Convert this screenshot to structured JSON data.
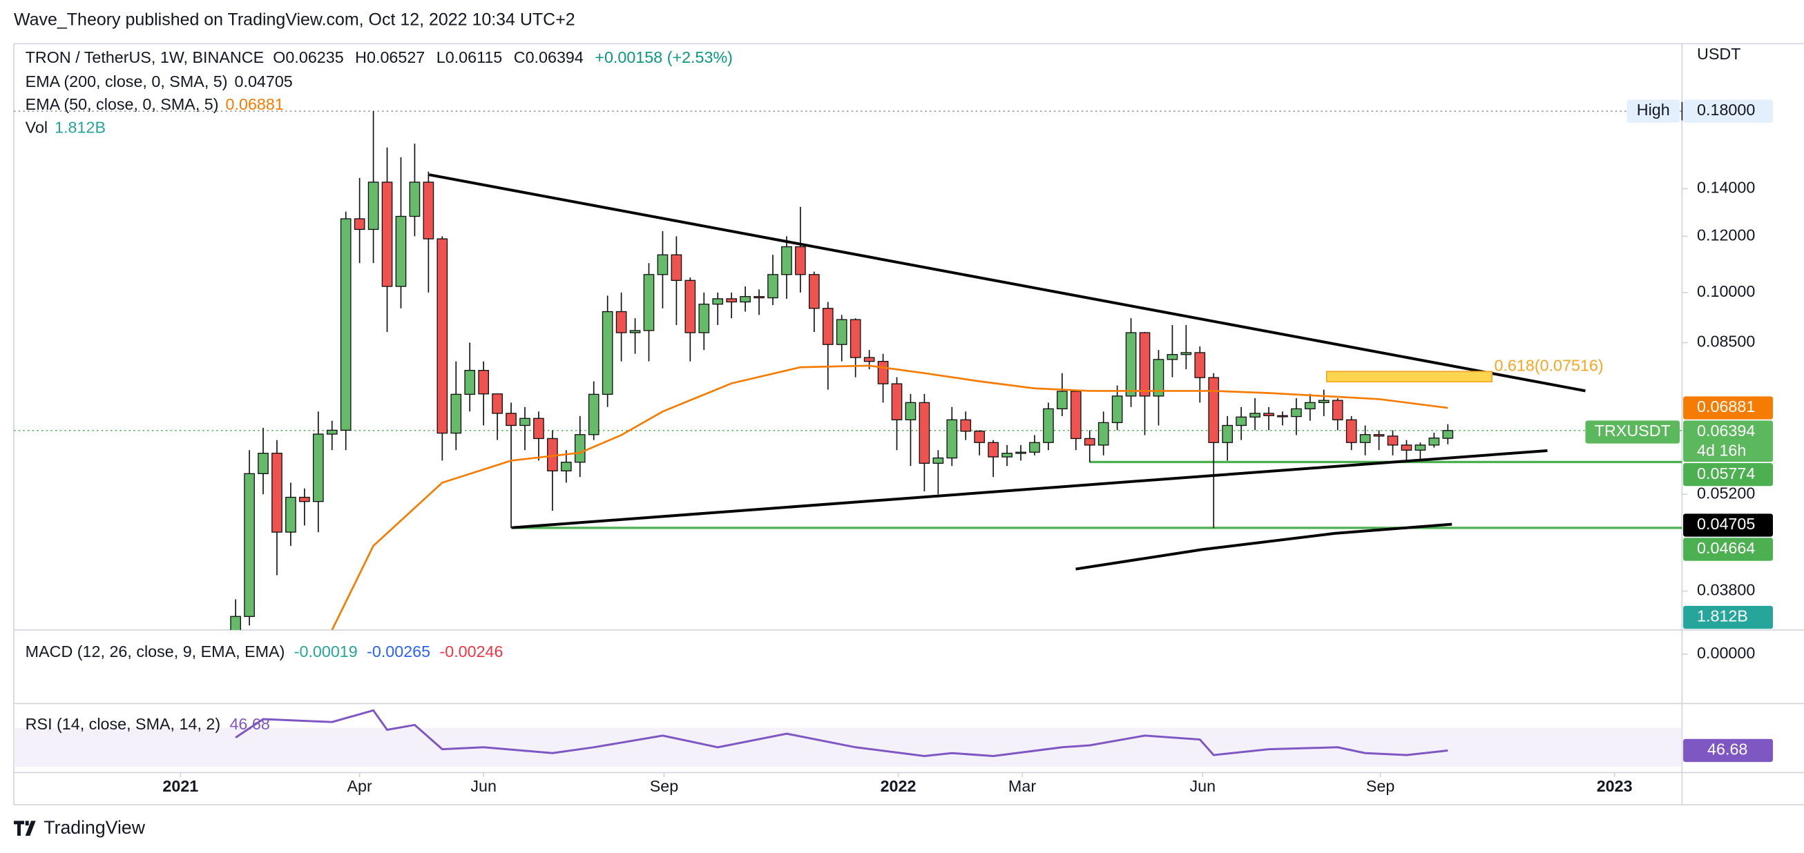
{
  "header": {
    "publisher": "Wave_Theory published on TradingView.com, Oct 12, 2022 10:34 UTC+2"
  },
  "chart_data": {
    "type": "candlestick",
    "title": "TRON / TetherUS, 1W, BINANCE",
    "ohlc_labels": [
      "O0.06235",
      "H0.06527",
      "L0.06115",
      "C0.06394",
      "+0.00158 (+2.53%)"
    ],
    "legend": [
      {
        "name": "EMA (200, close, 0, SMA, 5)",
        "value": "0.04705",
        "color": "#131722"
      },
      {
        "name": "EMA (50, close, 0, SMA, 5)",
        "value": "0.06881",
        "color": "#f57c00"
      },
      {
        "name": "Vol",
        "value": "1.812B",
        "color": "#26a69a"
      }
    ],
    "y_unit": "USDT",
    "log_scale": true,
    "grid": false,
    "up_color": "#66bb6a",
    "down_color": "#ef5350",
    "border_color": "#111111",
    "x": [
      0,
      1,
      2,
      3,
      4,
      5,
      6,
      7,
      8,
      9,
      10,
      11,
      12,
      13,
      14,
      15,
      16,
      17,
      18,
      19,
      20,
      21,
      22,
      23,
      24,
      25,
      26,
      27,
      28,
      29,
      30,
      31,
      32,
      33,
      34,
      35,
      36,
      37,
      38,
      39,
      40,
      41,
      42,
      43,
      44,
      45,
      46,
      47,
      48,
      49,
      50,
      51,
      52,
      53,
      54,
      55,
      56,
      57,
      58,
      59,
      60,
      61,
      62,
      63,
      64,
      65,
      66,
      67,
      68,
      69,
      70,
      71,
      72,
      73,
      74,
      75,
      76,
      77,
      78,
      79,
      80,
      81,
      82,
      83,
      84,
      85,
      86,
      87,
      88
    ],
    "open": [
      0.033,
      0.035,
      0.0556,
      0.0594,
      0.046,
      0.0515,
      0.0508,
      0.0632,
      0.064,
      0.127,
      0.1227,
      0.143,
      0.102,
      0.128,
      0.143,
      0.119,
      0.0634,
      0.0719,
      0.0777,
      0.072,
      0.0676,
      0.065,
      0.0665,
      0.0623,
      0.0561,
      0.0577,
      0.0631,
      0.0719,
      0.094,
      0.0878,
      0.0884,
      0.106,
      0.113,
      0.104,
      0.0878,
      0.0963,
      0.098,
      0.097,
      0.0987,
      0.0983,
      0.106,
      0.116,
      0.106,
      0.095,
      0.0845,
      0.0916,
      0.081,
      0.08,
      0.0744,
      0.0662,
      0.07,
      0.0575,
      0.0585,
      0.0662,
      0.0638,
      0.0615,
      0.0587,
      0.0594,
      0.0596,
      0.0615,
      0.0686,
      0.0726,
      0.0623,
      0.061,
      0.0656,
      0.0715,
      0.0878,
      0.0715,
      0.0805,
      0.0818,
      0.0823,
      0.0759,
      0.0615,
      0.065,
      0.0668,
      0.0676,
      0.0671,
      0.0669,
      0.0686,
      0.07,
      0.0705,
      0.0662,
      0.0615,
      0.0631,
      0.0628,
      0.061,
      0.06,
      0.061,
      0.06235
    ],
    "high": [
      0.037,
      0.06,
      0.0645,
      0.062,
      0.054,
      0.053,
      0.068,
      0.066,
      0.13,
      0.145,
      0.18,
      0.16,
      0.155,
      0.162,
      0.148,
      0.12,
      0.08,
      0.085,
      0.08,
      0.072,
      0.07,
      0.069,
      0.068,
      0.064,
      0.06,
      0.067,
      0.075,
      0.099,
      0.1,
      0.092,
      0.11,
      0.122,
      0.12,
      0.105,
      0.1,
      0.1,
      0.1,
      0.102,
      0.101,
      0.113,
      0.12,
      0.132,
      0.107,
      0.097,
      0.093,
      0.092,
      0.083,
      0.082,
      0.076,
      0.072,
      0.072,
      0.06,
      0.069,
      0.068,
      0.064,
      0.062,
      0.061,
      0.061,
      0.063,
      0.07,
      0.077,
      0.073,
      0.064,
      0.068,
      0.074,
      0.092,
      0.088,
      0.083,
      0.09,
      0.09,
      0.084,
      0.077,
      0.067,
      0.069,
      0.071,
      0.069,
      0.068,
      0.071,
      0.072,
      0.073,
      0.071,
      0.067,
      0.065,
      0.064,
      0.064,
      0.062,
      0.0615,
      0.0635,
      0.06527
    ],
    "low": [
      0.032,
      0.034,
      0.052,
      0.04,
      0.044,
      0.047,
      0.046,
      0.06,
      0.06,
      0.11,
      0.11,
      0.088,
      0.095,
      0.12,
      0.1,
      0.058,
      0.06,
      0.068,
      0.065,
      0.062,
      0.0466,
      0.06,
      0.058,
      0.0493,
      0.054,
      0.055,
      0.062,
      0.069,
      0.08,
      0.082,
      0.08,
      0.095,
      0.09,
      0.08,
      0.083,
      0.09,
      0.092,
      0.094,
      0.093,
      0.096,
      0.098,
      0.1,
      0.088,
      0.073,
      0.08,
      0.076,
      0.078,
      0.07,
      0.06,
      0.057,
      0.0525,
      0.052,
      0.057,
      0.062,
      0.059,
      0.055,
      0.057,
      0.058,
      0.059,
      0.06,
      0.067,
      0.06,
      0.0577,
      0.059,
      0.064,
      0.069,
      0.063,
      0.065,
      0.076,
      0.078,
      0.07,
      0.0466,
      0.058,
      0.062,
      0.064,
      0.064,
      0.065,
      0.063,
      0.066,
      0.067,
      0.064,
      0.06,
      0.059,
      0.06,
      0.059,
      0.0577,
      0.058,
      0.0605,
      0.06115
    ],
    "close": [
      0.035,
      0.0556,
      0.0594,
      0.046,
      0.0515,
      0.0508,
      0.0632,
      0.064,
      0.127,
      0.1227,
      0.143,
      0.102,
      0.128,
      0.143,
      0.119,
      0.0634,
      0.0719,
      0.0777,
      0.072,
      0.0676,
      0.065,
      0.0665,
      0.0623,
      0.0561,
      0.0577,
      0.0631,
      0.0719,
      0.094,
      0.0878,
      0.0884,
      0.106,
      0.113,
      0.104,
      0.0878,
      0.0963,
      0.098,
      0.097,
      0.0987,
      0.0983,
      0.106,
      0.116,
      0.106,
      0.095,
      0.0845,
      0.0916,
      0.081,
      0.08,
      0.0744,
      0.0662,
      0.07,
      0.0575,
      0.0585,
      0.0662,
      0.0638,
      0.0615,
      0.0587,
      0.0594,
      0.0596,
      0.0615,
      0.0686,
      0.0726,
      0.0623,
      0.061,
      0.0656,
      0.0715,
      0.0878,
      0.0715,
      0.0805,
      0.0818,
      0.0823,
      0.0759,
      0.0615,
      0.065,
      0.0668,
      0.0676,
      0.0671,
      0.0669,
      0.0686,
      0.07,
      0.0705,
      0.0662,
      0.0615,
      0.0631,
      0.0628,
      0.061,
      0.06,
      0.061,
      0.0624,
      0.06394
    ],
    "xlim": [
      -16.1,
      105
    ],
    "xticks": [
      {
        "value": -4,
        "label": "2021"
      },
      {
        "value": 9,
        "label": "Apr"
      },
      {
        "value": 18,
        "label": "Jun"
      },
      {
        "value": 31.1,
        "label": "Sep"
      },
      {
        "value": 48.1,
        "label": "2022"
      },
      {
        "value": 57.1,
        "label": "Mar"
      },
      {
        "value": 70.2,
        "label": "Jun"
      },
      {
        "value": 83.1,
        "label": "Sep"
      },
      {
        "value": 100.1,
        "label": "2023"
      }
    ],
    "ylim": [
      0.0335,
      0.224
    ],
    "yticks": [
      {
        "value": 0.038,
        "label": "0.03800"
      },
      {
        "value": 0.052,
        "label": "0.05200"
      },
      {
        "value": 0.085,
        "label": "0.08500"
      },
      {
        "value": 0.1,
        "label": "0.10000"
      },
      {
        "value": 0.12,
        "label": "0.12000"
      },
      {
        "value": 0.14,
        "label": "0.14000"
      }
    ],
    "ema": {
      "x": [
        7,
        10,
        15,
        20,
        25,
        28,
        31,
        36,
        41,
        46,
        50,
        54,
        58,
        62,
        71,
        75,
        83,
        88
      ],
      "values": [
        0.0335,
        0.044,
        0.054,
        0.058,
        0.0595,
        0.063,
        0.068,
        0.0745,
        0.0785,
        0.0789,
        0.077,
        0.075,
        0.0733,
        0.0727,
        0.0727,
        0.0722,
        0.0708,
        0.06881
      ],
      "color": "#f57c00"
    },
    "price_tags": [
      {
        "value": 0.18,
        "label": "0.18000",
        "name": "High",
        "color": "#e3effd",
        "line": "dotted"
      },
      {
        "value": 0.06881,
        "label": "0.06881",
        "color": "#f57c00"
      },
      {
        "value": 0.06394,
        "label": "0.06394",
        "name": "TRXUSDT",
        "countdown": "4d 16h",
        "color": "#5cb85c",
        "line": "dotted"
      },
      {
        "value": 0.05774,
        "label": "0.05774",
        "color": "#4caf50",
        "line_from": 62
      },
      {
        "value": 0.04705,
        "label": "0.04705",
        "color": "#000000"
      },
      {
        "value": 0.04664,
        "label": "0.04664",
        "color": "#4caf50",
        "line_from": 20
      }
    ],
    "fib": {
      "label": "0.618(0.07516)",
      "value": 0.07516,
      "from": 79.2,
      "to": 91.2,
      "color": "#ffd54f"
    },
    "macd": {
      "title": "MACD (12, 26, close, 9, EMA, EMA)",
      "values": [
        {
          "label": "-0.00019",
          "color": "#26a69a"
        },
        {
          "label": "-0.00265",
          "color": "#2962ff"
        },
        {
          "label": "-0.00246",
          "color": "#f23645"
        }
      ],
      "ylim": [
        -0.012,
        0.00586
      ],
      "yticks": [
        {
          "value": 0,
          "label": "0.00000"
        }
      ]
    },
    "rsi": {
      "title": "RSI (14, close, SMA, 14, 2)",
      "value_label": "46.68",
      "x": [
        0,
        2,
        7,
        10,
        11,
        13,
        15,
        18,
        23,
        26,
        31,
        35,
        40,
        45,
        50,
        52,
        55,
        60,
        62,
        66,
        70,
        71,
        75,
        80,
        82,
        85,
        88
      ],
      "values": [
        60,
        79,
        76,
        88,
        68,
        73,
        48,
        50,
        44,
        50,
        62,
        50,
        64,
        50,
        41,
        44,
        41,
        50,
        52,
        62,
        58,
        42,
        48,
        50,
        44,
        42,
        46.68
      ],
      "ylim": [
        24,
        95
      ],
      "bands": [
        30,
        70
      ],
      "color": "#7e57c2"
    }
  },
  "footer": {
    "brand": "TradingView"
  }
}
